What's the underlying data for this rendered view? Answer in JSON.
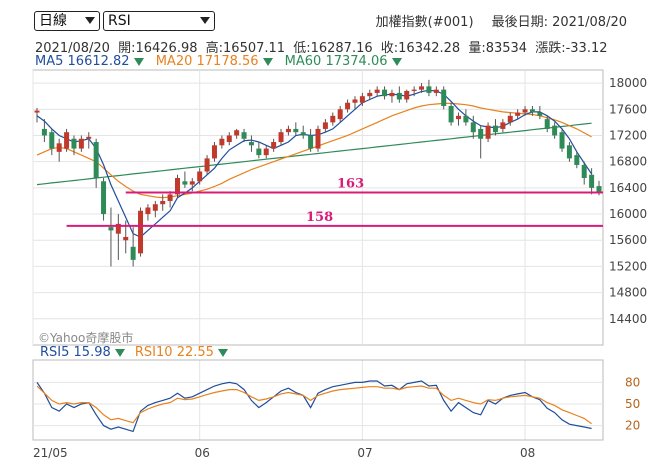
{
  "toolbar": {
    "period_select": "日線",
    "indicator_select": "RSI"
  },
  "header": {
    "index_name": "加權指數(#001)",
    "last_date_label": "最後日期:",
    "last_date": "2021/08/20"
  },
  "quote": {
    "date": "2021/08/20",
    "open": "開:16426.98",
    "high": "高:16507.11",
    "low": "低:16287.16",
    "close": "收:16342.28",
    "volume": "量:83534",
    "change": "漲跌:-33.12"
  },
  "ma_legend": [
    {
      "name": "MA5",
      "value": "16612.82",
      "color": "#1f4e9c"
    },
    {
      "name": "MA20",
      "value": "17178.56",
      "color": "#e8821e"
    },
    {
      "name": "MA60",
      "value": "17374.06",
      "color": "#2e8b57"
    }
  ],
  "rsi_legend": [
    {
      "name": "RSI5",
      "value": "15.98",
      "color": "#1f4e9c"
    },
    {
      "name": "RSI10",
      "value": "22.55",
      "color": "#e8821e"
    }
  ],
  "watermark": "©Yahoo奇摩股市",
  "colors": {
    "up": "#c0392b",
    "down": "#2e8b57",
    "line": "#d81b7a",
    "ma5": "#1f4e9c",
    "ma20": "#e8821e",
    "ma60": "#2e8b57"
  },
  "chart_data": [
    {
      "type": "candlestick",
      "ylim": [
        14000,
        18200
      ],
      "yticks": [
        14400,
        14800,
        15200,
        15600,
        16000,
        16400,
        16800,
        17200,
        17600,
        18000
      ],
      "x_labels": [
        {
          "label": "21/05",
          "index": 0
        },
        {
          "label": "06",
          "index": 22
        },
        {
          "label": "07",
          "index": 44
        },
        {
          "label": "08",
          "index": 66
        }
      ],
      "ohlc": [
        [
          17550,
          17620,
          17400,
          17580
        ],
        [
          17300,
          17450,
          17100,
          17200
        ],
        [
          17250,
          17300,
          16900,
          17000
        ],
        [
          16950,
          17150,
          16800,
          17080
        ],
        [
          17000,
          17300,
          16950,
          17250
        ],
        [
          17150,
          17200,
          16900,
          17000
        ],
        [
          17000,
          17200,
          16950,
          17150
        ],
        [
          17150,
          17250,
          17000,
          17180
        ],
        [
          17100,
          17150,
          16400,
          16550
        ],
        [
          16500,
          16550,
          15900,
          16000
        ],
        [
          15800,
          16100,
          15200,
          15750
        ],
        [
          15700,
          16000,
          15300,
          15850
        ],
        [
          15600,
          15900,
          15400,
          15650
        ],
        [
          15500,
          15800,
          15200,
          15300
        ],
        [
          15400,
          16100,
          15350,
          16050
        ],
        [
          16000,
          16150,
          15900,
          16100
        ],
        [
          16050,
          16200,
          15950,
          16150
        ],
        [
          16150,
          16300,
          16050,
          16200
        ],
        [
          16200,
          16350,
          16100,
          16300
        ],
        [
          16300,
          16600,
          16250,
          16550
        ],
        [
          16500,
          16650,
          16400,
          16450
        ],
        [
          16450,
          16550,
          16350,
          16500
        ],
        [
          16500,
          16700,
          16450,
          16650
        ],
        [
          16650,
          16900,
          16600,
          16850
        ],
        [
          16850,
          17100,
          16800,
          17050
        ],
        [
          17050,
          17200,
          17000,
          17150
        ],
        [
          17100,
          17250,
          17050,
          17200
        ],
        [
          17200,
          17300,
          17150,
          17280
        ],
        [
          17250,
          17300,
          17100,
          17150
        ],
        [
          17100,
          17200,
          16950,
          17050
        ],
        [
          17000,
          17100,
          16850,
          16900
        ],
        [
          16900,
          17050,
          16850,
          17000
        ],
        [
          17000,
          17150,
          16950,
          17100
        ],
        [
          17100,
          17300,
          17050,
          17250
        ],
        [
          17250,
          17350,
          17200,
          17300
        ],
        [
          17300,
          17400,
          17200,
          17250
        ],
        [
          17250,
          17350,
          17150,
          17200
        ],
        [
          17200,
          17300,
          16950,
          17000
        ],
        [
          17000,
          17350,
          16950,
          17300
        ],
        [
          17300,
          17450,
          17250,
          17400
        ],
        [
          17400,
          17550,
          17350,
          17500
        ],
        [
          17450,
          17650,
          17400,
          17600
        ],
        [
          17600,
          17750,
          17550,
          17700
        ],
        [
          17700,
          17800,
          17600,
          17750
        ],
        [
          17700,
          17850,
          17650,
          17800
        ],
        [
          17800,
          17900,
          17750,
          17850
        ],
        [
          17850,
          17950,
          17800,
          17900
        ],
        [
          17900,
          17950,
          17750,
          17800
        ],
        [
          17800,
          17900,
          17700,
          17850
        ],
        [
          17850,
          17950,
          17700,
          17750
        ],
        [
          17750,
          17900,
          17700,
          17880
        ],
        [
          17880,
          17950,
          17800,
          17900
        ],
        [
          17900,
          18000,
          17850,
          17950
        ],
        [
          17950,
          18050,
          17800,
          17850
        ],
        [
          17850,
          17950,
          17800,
          17900
        ],
        [
          17900,
          17950,
          17600,
          17650
        ],
        [
          17650,
          17700,
          17350,
          17400
        ],
        [
          17450,
          17550,
          17350,
          17500
        ],
        [
          17500,
          17600,
          17350,
          17400
        ],
        [
          17400,
          17500,
          17150,
          17250
        ],
        [
          17300,
          17350,
          16850,
          17150
        ],
        [
          17150,
          17400,
          17100,
          17350
        ],
        [
          17350,
          17450,
          17200,
          17250
        ],
        [
          17300,
          17450,
          17250,
          17400
        ],
        [
          17400,
          17550,
          17350,
          17500
        ],
        [
          17500,
          17600,
          17450,
          17550
        ],
        [
          17550,
          17650,
          17500,
          17600
        ],
        [
          17600,
          17650,
          17500,
          17550
        ],
        [
          17550,
          17650,
          17450,
          17500
        ],
        [
          17450,
          17500,
          17250,
          17300
        ],
        [
          17350,
          17400,
          17150,
          17200
        ],
        [
          17250,
          17300,
          16950,
          17000
        ],
        [
          17050,
          17100,
          16800,
          16850
        ],
        [
          16900,
          16950,
          16700,
          16750
        ],
        [
          16750,
          16800,
          16450,
          16550
        ],
        [
          16600,
          16700,
          16300,
          16400
        ],
        [
          16427,
          16507,
          16287,
          16342
        ]
      ],
      "ma5": [
        17500,
        17420,
        17300,
        17200,
        17150,
        17100,
        17120,
        17150,
        17000,
        16750,
        16450,
        16200,
        15950,
        15700,
        15650,
        15750,
        15850,
        15950,
        16050,
        16250,
        16320,
        16400,
        16500,
        16600,
        16700,
        16850,
        16980,
        17050,
        17120,
        17130,
        17100,
        17050,
        17000,
        17050,
        17100,
        17200,
        17220,
        17200,
        17210,
        17250,
        17300,
        17400,
        17500,
        17600,
        17700,
        17750,
        17800,
        17820,
        17830,
        17820,
        17800,
        17830,
        17870,
        17890,
        17880,
        17830,
        17720,
        17600,
        17500,
        17420,
        17350,
        17330,
        17320,
        17340,
        17400,
        17450,
        17520,
        17560,
        17560,
        17500,
        17420,
        17300,
        17150,
        16950,
        16780,
        16613
      ],
      "ma20": [
        16900,
        16950,
        17000,
        17020,
        17000,
        16950,
        16900,
        16850,
        16800,
        16700,
        16600,
        16500,
        16420,
        16350,
        16300,
        16280,
        16260,
        16250,
        16260,
        16280,
        16300,
        16320,
        16350,
        16380,
        16420,
        16470,
        16530,
        16580,
        16630,
        16680,
        16720,
        16760,
        16800,
        16840,
        16880,
        16920,
        16960,
        17000,
        17040,
        17080,
        17120,
        17160,
        17200,
        17250,
        17300,
        17350,
        17400,
        17450,
        17500,
        17540,
        17580,
        17620,
        17650,
        17670,
        17680,
        17690,
        17690,
        17680,
        17670,
        17650,
        17620,
        17600,
        17580,
        17560,
        17550,
        17540,
        17530,
        17520,
        17500,
        17470,
        17440,
        17400,
        17350,
        17300,
        17240,
        17179
      ]
    },
    {
      "type": "line",
      "ylim": [
        0,
        100
      ],
      "yticks": [
        20,
        50,
        80
      ],
      "series": [
        {
          "name": "RSI5",
          "values": [
            80,
            65,
            45,
            40,
            50,
            45,
            50,
            52,
            35,
            20,
            15,
            18,
            15,
            12,
            40,
            48,
            52,
            55,
            58,
            65,
            58,
            60,
            65,
            70,
            75,
            78,
            80,
            78,
            70,
            55,
            45,
            52,
            60,
            68,
            72,
            66,
            62,
            45,
            65,
            70,
            74,
            76,
            78,
            80,
            80,
            82,
            82,
            75,
            76,
            70,
            78,
            80,
            82,
            75,
            76,
            55,
            40,
            52,
            45,
            38,
            35,
            55,
            50,
            58,
            62,
            64,
            66,
            60,
            56,
            44,
            38,
            28,
            22,
            20,
            18,
            16
          ]
        },
        {
          "name": "RSI10",
          "values": [
            75,
            65,
            55,
            50,
            52,
            50,
            52,
            52,
            45,
            35,
            28,
            30,
            27,
            24,
            38,
            43,
            47,
            50,
            52,
            58,
            56,
            57,
            60,
            63,
            66,
            68,
            70,
            70,
            66,
            60,
            55,
            57,
            60,
            64,
            66,
            64,
            62,
            55,
            62,
            65,
            68,
            70,
            71,
            72,
            73,
            74,
            74,
            72,
            72,
            70,
            73,
            74,
            75,
            72,
            72,
            62,
            55,
            58,
            55,
            52,
            50,
            56,
            55,
            58,
            60,
            61,
            62,
            60,
            58,
            52,
            48,
            42,
            38,
            34,
            30,
            22.5
          ]
        }
      ]
    }
  ]
}
